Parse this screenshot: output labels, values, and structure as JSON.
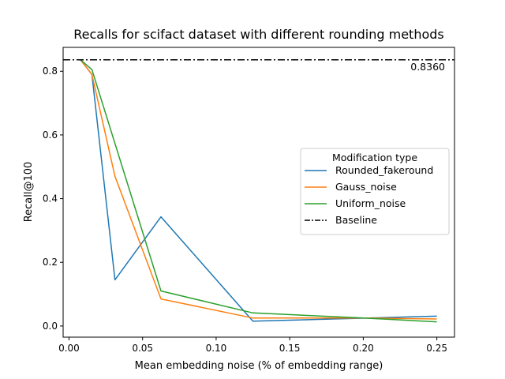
{
  "chart_data": {
    "type": "line",
    "title": "Recalls for scifact dataset with different rounding methods",
    "xlabel": "Mean embedding noise (% of embedding range)",
    "ylabel": "Recall@100",
    "xlim": [
      -0.004,
      0.262
    ],
    "ylim": [
      -0.035,
      0.875
    ],
    "x_ticks": [
      0.0,
      0.05,
      0.1,
      0.15,
      0.2,
      0.25
    ],
    "x_tick_labels": [
      "0.00",
      "0.05",
      "0.10",
      "0.15",
      "0.20",
      "0.25"
    ],
    "y_ticks": [
      0.0,
      0.2,
      0.4,
      0.6,
      0.8
    ],
    "y_tick_labels": [
      "0.0",
      "0.2",
      "0.4",
      "0.6",
      "0.8"
    ],
    "grid": false,
    "legend": {
      "title": "Modification type",
      "placement": "center-right"
    },
    "series": [
      {
        "name": "Rounded_fakeround",
        "color": "#1f77b4",
        "style": "solid",
        "x": [
          0.0078,
          0.0156,
          0.03125,
          0.0625,
          0.125,
          0.25
        ],
        "y": [
          0.836,
          0.79,
          0.145,
          0.343,
          0.015,
          0.031
        ]
      },
      {
        "name": "Gauss_noise",
        "color": "#ff7f0e",
        "style": "solid",
        "x": [
          0.0078,
          0.0156,
          0.03125,
          0.0625,
          0.125,
          0.2,
          0.25
        ],
        "y": [
          0.836,
          0.79,
          0.47,
          0.085,
          0.025,
          0.025,
          0.022
        ]
      },
      {
        "name": "Uniform_noise",
        "color": "#2ca02c",
        "style": "solid",
        "x": [
          0.0078,
          0.0156,
          0.0625,
          0.125,
          0.2,
          0.25
        ],
        "y": [
          0.836,
          0.805,
          0.11,
          0.041,
          0.025,
          0.013
        ]
      },
      {
        "name": "Baseline",
        "color": "#000000",
        "style": "dashdot",
        "y_constant": 0.836
      }
    ],
    "annotations": [
      {
        "text": "0.8360"
      }
    ]
  }
}
